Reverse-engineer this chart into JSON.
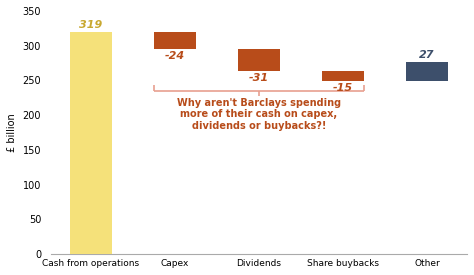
{
  "categories": [
    "Cash from operations",
    "Capex",
    "Dividends",
    "Share buybacks",
    "Other"
  ],
  "bar_bottoms": [
    0,
    295,
    264,
    249,
    249
  ],
  "bar_heights": [
    319,
    24,
    31,
    15,
    27
  ],
  "bar_colors": [
    "#f5e17a",
    "#b84c1a",
    "#b84c1a",
    "#b84c1a",
    "#3d4f6b"
  ],
  "bar_labels": [
    "319",
    "-24",
    "-31",
    "-15",
    "27"
  ],
  "label_colors": [
    "#c8a830",
    "#b84c1a",
    "#b84c1a",
    "#b84c1a",
    "#3d4f6b"
  ],
  "ylabel": "£ billion",
  "ylim": [
    0,
    350
  ],
  "yticks": [
    0,
    50,
    100,
    150,
    200,
    250,
    300,
    350
  ],
  "annotation_text": "Why aren't Barclays spending\nmore of their cash on capex,\ndividends or buybacks?!",
  "annotation_color": "#b84c1a",
  "bracket_color": "#e8a090",
  "background_color": "#ffffff"
}
